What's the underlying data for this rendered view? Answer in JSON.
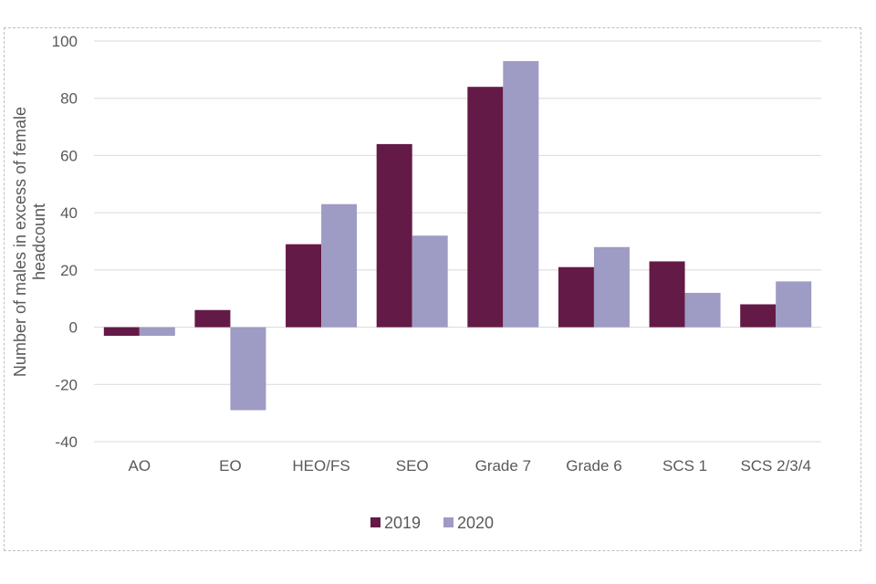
{
  "chart_data": {
    "type": "bar",
    "title": "",
    "xlabel": "",
    "ylabel_lines": [
      "Number of males in excess of female",
      "headcount"
    ],
    "categories": [
      "AO",
      "EO",
      "HEO/FS",
      "SEO",
      "Grade 7",
      "Grade 6",
      "SCS 1",
      "SCS 2/3/4"
    ],
    "series": [
      {
        "name": "2019",
        "color": "#641a46",
        "values": [
          -3,
          6,
          29,
          64,
          84,
          21,
          23,
          8
        ]
      },
      {
        "name": "2020",
        "color": "#9e9bc4",
        "values": [
          -3,
          -29,
          43,
          32,
          93,
          28,
          12,
          16
        ]
      }
    ],
    "ylim": [
      -40,
      100
    ],
    "yticks": [
      100,
      80,
      60,
      40,
      20,
      0,
      -20,
      -40
    ],
    "grid": true,
    "legend_position": "bottom"
  }
}
